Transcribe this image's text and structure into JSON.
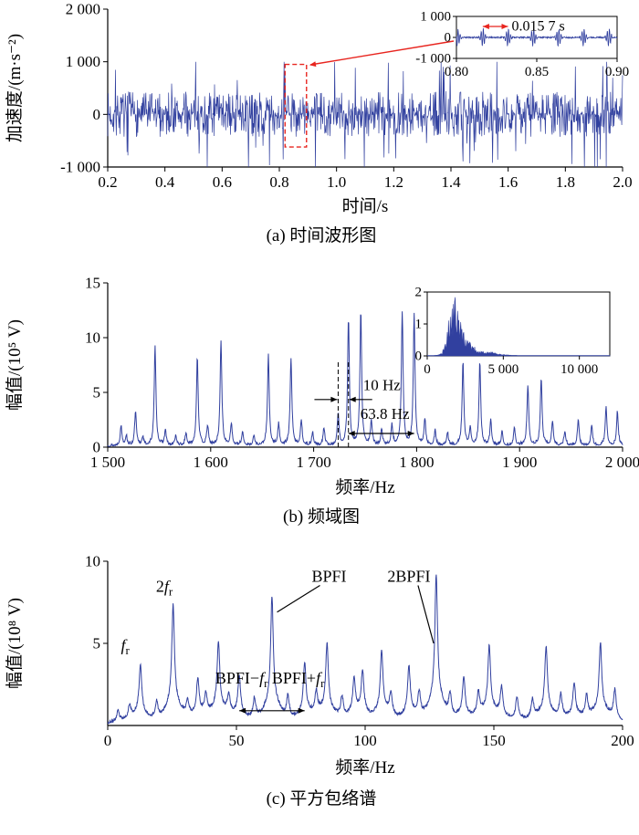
{
  "figure": {
    "background": "#ffffff",
    "line_color": "#31409f",
    "accent_red": "#e8251f",
    "text_color": "#000000"
  },
  "chart_data": [
    {
      "id": "time-waveform",
      "type": "line",
      "caption": "(a) 时间波形图",
      "xlabel": "时间/s",
      "ylabel": "加速度/(m·s⁻²)",
      "xlim": [
        0.2,
        2.0
      ],
      "ylim": [
        -1000,
        2000
      ],
      "xticks": [
        0.2,
        0.4,
        0.6,
        0.8,
        1.0,
        1.2,
        1.4,
        1.6,
        1.8,
        2.0
      ],
      "xtick_labels": [
        "0.2",
        "0.4",
        "0.6",
        "0.8",
        "1.0",
        "1.2",
        "1.4",
        "1.6",
        "1.8",
        "2.0"
      ],
      "yticks": [
        -1000,
        0,
        1000,
        2000
      ],
      "ytick_labels": [
        "-1 000",
        "0",
        "1 000",
        "2 000"
      ],
      "signal": {
        "kind": "random-impulse-vibration",
        "noise_amplitude_ms2": 430,
        "spike_amplitude_ms2": 1000,
        "impulse_period_s": 0.0157,
        "samples": 1200,
        "seed": 7
      },
      "highlight_box": {
        "x": [
          0.82,
          0.895
        ],
        "y": [
          -620,
          950
        ]
      },
      "inset": {
        "xlim": [
          0.8,
          0.9
        ],
        "ylim": [
          -1000,
          1000
        ],
        "xticks": [
          0.8,
          0.85,
          0.9
        ],
        "xtick_labels": [
          "0.80",
          "0.85",
          "0.90"
        ],
        "yticks": [
          -1000,
          0,
          1000
        ],
        "ytick_labels": [
          "-1 000",
          "0",
          "1 000"
        ],
        "annotation_text": "0.015 7 s",
        "annotation_span_s": [
          0.8164,
          0.8321
        ]
      }
    },
    {
      "id": "frequency-spectrum",
      "type": "line",
      "caption": "(b) 频域图",
      "xlabel": "频率/Hz",
      "ylabel": "幅值/(10⁵ V)",
      "xlim": [
        1500,
        2000
      ],
      "ylim": [
        0,
        15
      ],
      "xticks": [
        1500,
        1600,
        1700,
        1800,
        1900,
        2000
      ],
      "xtick_labels": [
        "1 500",
        "1 600",
        "1 700",
        "1 800",
        "1 900",
        "2 000"
      ],
      "yticks": [
        0,
        5,
        10,
        15
      ],
      "ytick_labels": [
        "0",
        "5",
        "10",
        "15"
      ],
      "peak_width_hz": 1.0,
      "noise_floor": 0.3,
      "peaks_hz_amp": [
        [
          1513,
          1.8
        ],
        [
          1518,
          0.9
        ],
        [
          1527,
          3.1
        ],
        [
          1534,
          0.8
        ],
        [
          1546,
          9.0
        ],
        [
          1556,
          1.4
        ],
        [
          1566,
          0.9
        ],
        [
          1576,
          1.1
        ],
        [
          1587,
          8.1
        ],
        [
          1597,
          1.8
        ],
        [
          1610,
          9.6
        ],
        [
          1620,
          2.0
        ],
        [
          1631,
          1.3
        ],
        [
          1642,
          0.9
        ],
        [
          1656,
          8.2
        ],
        [
          1666,
          1.9
        ],
        [
          1678,
          8.0
        ],
        [
          1688,
          2.3
        ],
        [
          1699,
          1.2
        ],
        [
          1710,
          1.6
        ],
        [
          1723.8,
          2.9
        ],
        [
          1733.8,
          11.6
        ],
        [
          1745.8,
          12.3
        ],
        [
          1756,
          2.3
        ],
        [
          1766,
          1.4
        ],
        [
          1776,
          1.8
        ],
        [
          1786,
          12.2
        ],
        [
          1797.6,
          12.0
        ],
        [
          1808,
          2.4
        ],
        [
          1818,
          1.3
        ],
        [
          1830,
          1.2
        ],
        [
          1845,
          7.6
        ],
        [
          1852,
          1.5
        ],
        [
          1861.4,
          7.6
        ],
        [
          1872,
          2.2
        ],
        [
          1883,
          1.2
        ],
        [
          1895,
          1.6
        ],
        [
          1908,
          5.5
        ],
        [
          1921,
          6.2
        ],
        [
          1932,
          2.2
        ],
        [
          1944,
          1.3
        ],
        [
          1957,
          2.4
        ],
        [
          1970,
          1.8
        ],
        [
          1984,
          3.4
        ],
        [
          1995,
          3.1
        ]
      ],
      "annotations": {
        "dashed_lines_hz": [
          1723.8,
          1733.8
        ],
        "spacing_small": {
          "text": "10 Hz",
          "value_hz": 10
        },
        "spacing_large": {
          "text": "63.8 Hz",
          "value_hz": 63.8,
          "span_hz": [
            1733.8,
            1797.6
          ]
        }
      },
      "inset": {
        "xlim": [
          0,
          12000
        ],
        "ylim": [
          0,
          2
        ],
        "xticks": [
          0,
          5000,
          10000
        ],
        "xtick_labels": [
          "0",
          "5 000",
          "10 000"
        ],
        "yticks": [
          0,
          1,
          2
        ],
        "ytick_labels": [
          "0",
          "1",
          "2"
        ],
        "cluster_center_hz": 1750,
        "cluster_peak_amp": 1.9
      }
    },
    {
      "id": "squared-envelope-spectrum",
      "type": "line",
      "caption": "(c) 平方包络谱",
      "xlabel": "频率/Hz",
      "ylabel": "幅值/(10⁸ V)",
      "xlim": [
        0,
        200
      ],
      "ylim": [
        0,
        10
      ],
      "xticks": [
        0,
        50,
        100,
        150,
        200
      ],
      "xtick_labels": [
        "0",
        "50",
        "100",
        "150",
        "200"
      ],
      "yticks": [
        5,
        10
      ],
      "ytick_labels": [
        "5",
        "10"
      ],
      "peak_width_hz": 0.6,
      "noise_floor": 0.2,
      "peaks_hz_amp": [
        [
          4,
          0.7
        ],
        [
          8.5,
          0.9
        ],
        [
          12.7,
          3.4
        ],
        [
          19,
          1.2
        ],
        [
          25.4,
          7.0
        ],
        [
          31,
          1.1
        ],
        [
          35,
          2.4
        ],
        [
          38.1,
          1.4
        ],
        [
          43,
          4.7
        ],
        [
          47,
          1.3
        ],
        [
          51.1,
          2.7
        ],
        [
          57,
          1.4
        ],
        [
          63.8,
          7.5
        ],
        [
          70,
          1.5
        ],
        [
          76.5,
          3.5
        ],
        [
          81,
          1.5
        ],
        [
          85.2,
          4.6
        ],
        [
          91,
          1.4
        ],
        [
          95.7,
          2.4
        ],
        [
          99,
          2.9
        ],
        [
          106.4,
          4.2
        ],
        [
          110,
          1.5
        ],
        [
          117,
          3.3
        ],
        [
          121,
          1.6
        ],
        [
          127.6,
          8.7
        ],
        [
          133,
          1.5
        ],
        [
          138.3,
          2.7
        ],
        [
          144,
          1.6
        ],
        [
          148.2,
          4.4
        ],
        [
          153,
          2.0
        ],
        [
          159,
          1.5
        ],
        [
          165,
          1.3
        ],
        [
          170.3,
          4.5
        ],
        [
          176,
          1.6
        ],
        [
          181.2,
          2.3
        ],
        [
          186,
          1.5
        ],
        [
          191.4,
          4.7
        ],
        [
          197,
          1.9
        ]
      ],
      "markers": [
        {
          "text": "f_r",
          "pos": [
            6.8,
            4.55
          ]
        },
        {
          "text": "2f_r",
          "pos": [
            22,
            8.15
          ]
        },
        {
          "text": "BPFI",
          "pos": [
            86,
            8.75
          ],
          "pointer_to": [
            65.8,
            6.9
          ]
        },
        {
          "text": "2BPFI",
          "pos": [
            117,
            8.75
          ],
          "pointer_to": [
            126.6,
            5.0
          ]
        },
        {
          "text": "BPFI−f_r BPFI+f_r",
          "pos": [
            63,
            2.55
          ]
        }
      ],
      "sideband_arrow": {
        "span_hz": [
          51.1,
          76.5
        ],
        "y": 0.9
      },
      "characteristic_frequencies": {
        "f_r_hz": 12.7,
        "BPFI_hz": 63.8,
        "BPFI2_hz": 127.6
      }
    }
  ]
}
